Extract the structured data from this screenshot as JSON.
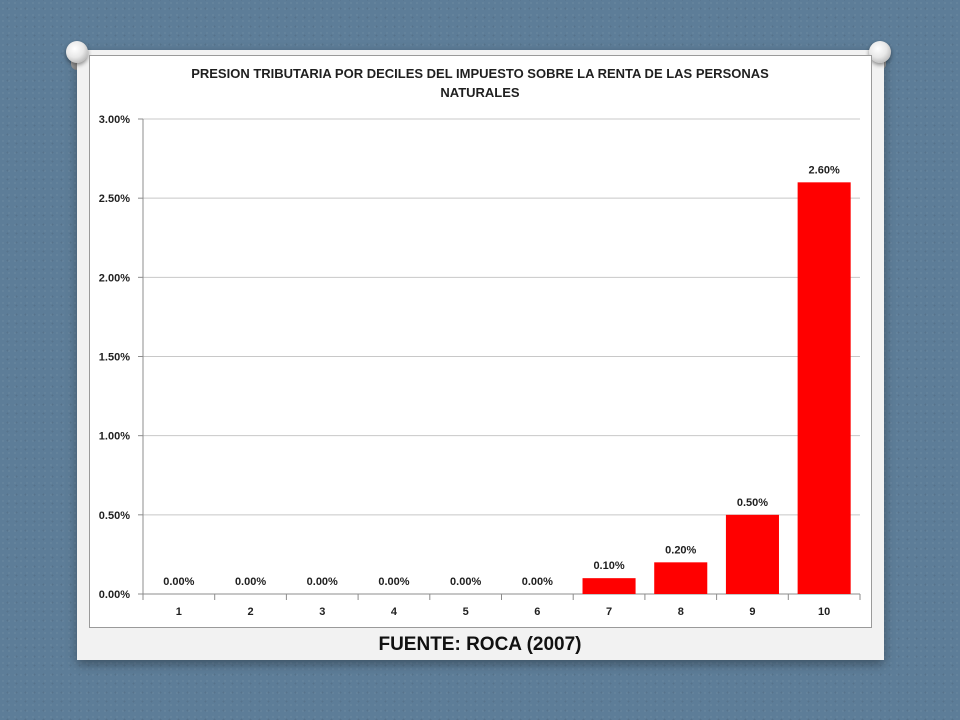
{
  "chart_data": {
    "type": "bar",
    "title_lines": [
      "PRESION TRIBUTARIA POR DECILES DEL IMPUESTO SOBRE LA RENTA DE LAS PERSONAS",
      "NATURALES"
    ],
    "xlabel": "",
    "ylabel": "",
    "categories": [
      "1",
      "2",
      "3",
      "4",
      "5",
      "6",
      "7",
      "8",
      "9",
      "10"
    ],
    "values": [
      0.0,
      0.0,
      0.0,
      0.0,
      0.0,
      0.0,
      0.1,
      0.2,
      0.5,
      2.6
    ],
    "data_labels": [
      "0.00%",
      "0.00%",
      "0.00%",
      "0.00%",
      "0.00%",
      "0.00%",
      "0.10%",
      "0.20%",
      "0.50%",
      "2.60%"
    ],
    "y_ticks": [
      0,
      0.5,
      1.0,
      1.5,
      2.0,
      2.5,
      3.0
    ],
    "y_tick_labels": [
      "0.00%",
      "0.50%",
      "1.00%",
      "1.50%",
      "2.00%",
      "2.50%",
      "3.00%"
    ],
    "ylim": [
      0,
      3.0
    ],
    "grid": true,
    "legend": "none",
    "bar_color": "#ff0000"
  },
  "source": "FUENTE: ROCA (2007)"
}
